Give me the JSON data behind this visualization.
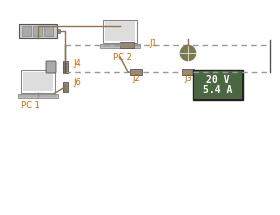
{
  "bg_color": "#ffffff",
  "dashed_line_color": "#888888",
  "connector_color": "#8B7355",
  "label_color": "#CC6600",
  "display_bg": "#4a6741",
  "display_border": "#222222",
  "display_text_color": "#ffffff",
  "display_text": [
    "20 V",
    "5.4 A"
  ],
  "labels": {
    "PC1": "PC 1",
    "PC2": "PC 2",
    "J1": "J1",
    "J2": "J2",
    "J3": "J3",
    "J4": "J4",
    "J6": "J6"
  },
  "connector_rect_color": "#9B8B6E",
  "line_color": "#777777",
  "globe_color": "#7A7A50"
}
